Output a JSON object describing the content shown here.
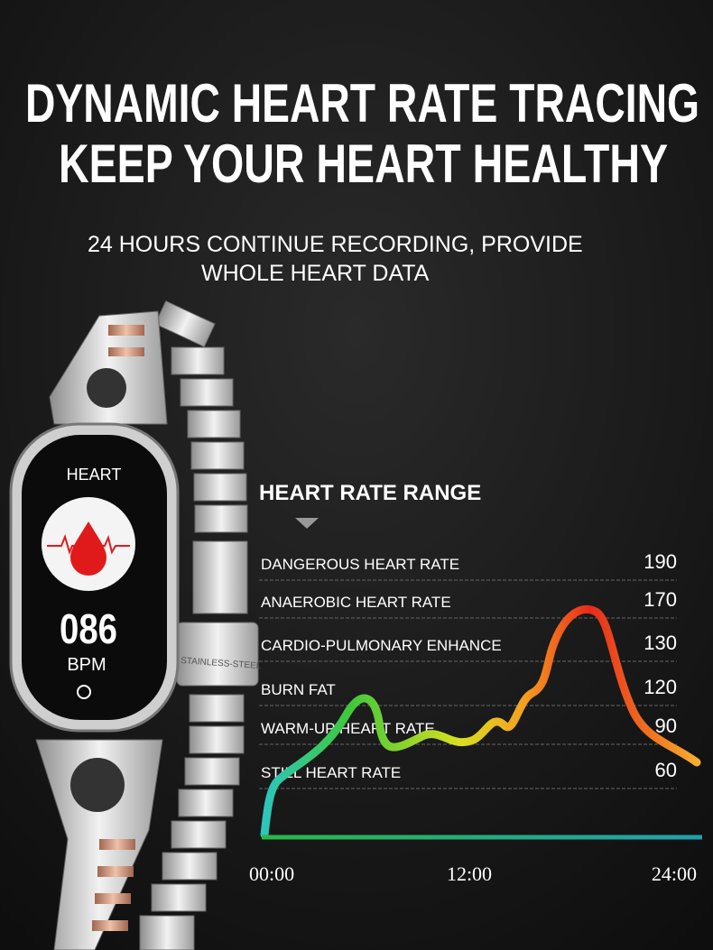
{
  "header": {
    "title": [
      "DYNAMIC HEART RATE TRACING",
      "KEEP YOUR HEART HEALTHY"
    ],
    "subtitle": [
      "24 HOURS CONTINUE RECORDING, PROVIDE",
      "WHOLE HEART DATA"
    ]
  },
  "watch": {
    "label": "HEART",
    "reading": "086",
    "unit": "BPM",
    "clasp": "STAINLESS-STEEL"
  },
  "range": {
    "title": "HEART RATE RANGE",
    "rows": [
      {
        "label": "DANGEROUS HEART RATE",
        "value": 190
      },
      {
        "label": "ANAEROBIC HEART RATE",
        "value": 170
      },
      {
        "label": "CARDIO-PULMONARY ENHANCE",
        "value": 130
      },
      {
        "label": "BURN FAT",
        "value": 120
      },
      {
        "label": "WARM-UP HEART RATE",
        "value": 90
      },
      {
        "label": "STILL HEART RATE",
        "value": 60
      }
    ],
    "times": [
      "00:00",
      "12:00",
      "24:00"
    ]
  }
}
